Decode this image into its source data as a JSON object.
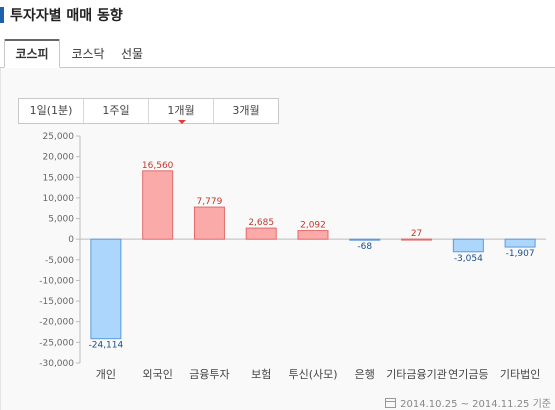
{
  "page_title": "투자자별 매매 동향",
  "market_tabs": [
    {
      "label": "코스피",
      "active": true
    },
    {
      "label": "코스닥",
      "active": false
    },
    {
      "label": "선물",
      "active": false
    }
  ],
  "period_tabs": [
    {
      "label": "1일(1분)",
      "active": false
    },
    {
      "label": "1주일",
      "active": false
    },
    {
      "label": "1개월",
      "active": true
    },
    {
      "label": "3개월",
      "active": false
    }
  ],
  "footer": {
    "date_range": "2014.10.25 ~ 2014.11.25 기준",
    "icon": "calendar-icon"
  },
  "chart_data": {
    "type": "bar",
    "title": "",
    "categories": [
      "개인",
      "외국인",
      "금융투자",
      "보험",
      "투신(사모)",
      "은행",
      "기타금융기관",
      "연기금등",
      "기타법인"
    ],
    "values": [
      -24114,
      16560,
      7779,
      2685,
      2092,
      -68,
      27,
      -3054,
      -1907
    ],
    "value_labels": [
      "-24,114",
      "16,560",
      "7,779",
      "2,685",
      "2,092",
      "-68",
      "27",
      "-3,054",
      "-1,907"
    ],
    "ylim": [
      -30000,
      25000
    ],
    "yticks": [
      25000,
      20000,
      15000,
      10000,
      5000,
      0,
      -5000,
      -10000,
      -15000,
      -20000,
      -25000,
      -30000
    ],
    "ytick_labels": [
      "25,000",
      "20,000",
      "15,000",
      "10,000",
      "5,000",
      "0",
      "-5,000",
      "-10,000",
      "-15,000",
      "-20,000",
      "-25,000",
      "-30,000"
    ],
    "grid": false,
    "colors": {
      "positive_fill": "#fbaaaa",
      "positive_stroke": "#e26b6b",
      "positive_label": "#c0392b",
      "negative_fill": "#acd6fc",
      "negative_stroke": "#5c9bd9",
      "negative_label": "#1a4f8a"
    }
  }
}
